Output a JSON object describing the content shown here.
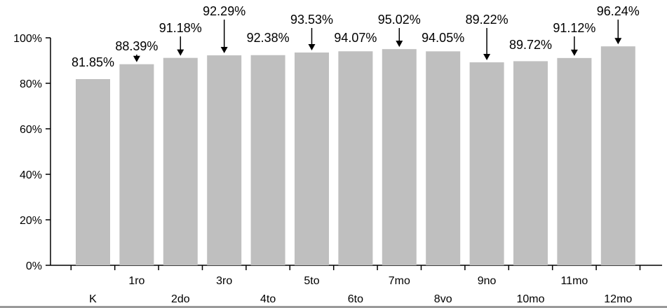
{
  "chart_data": {
    "type": "bar",
    "categories": [
      "K",
      "1ro",
      "2do",
      "3ro",
      "4to",
      "5to",
      "6to",
      "7mo",
      "8vo",
      "9no",
      "10mo",
      "11mo",
      "12mo"
    ],
    "values": [
      81.85,
      88.39,
      91.18,
      92.29,
      92.38,
      93.53,
      94.07,
      95.02,
      94.05,
      89.22,
      89.72,
      91.12,
      96.24
    ],
    "data_labels": [
      "81.85%",
      "88.39%",
      "91.18%",
      "92.29%",
      "92.38%",
      "93.53%",
      "94.07%",
      "95.02%",
      "94.05%",
      "89.22%",
      "89.72%",
      "91.12%",
      "96.24%"
    ],
    "y_ticks": [
      0,
      20,
      40,
      60,
      80,
      100
    ],
    "y_tick_labels": [
      "0%",
      "20%",
      "40%",
      "60%",
      "80%",
      "100%"
    ],
    "ylim": [
      0,
      100
    ],
    "grid": false,
    "legend": "none",
    "bar_color": "#bfbfbf",
    "axis_color": "#000000"
  }
}
